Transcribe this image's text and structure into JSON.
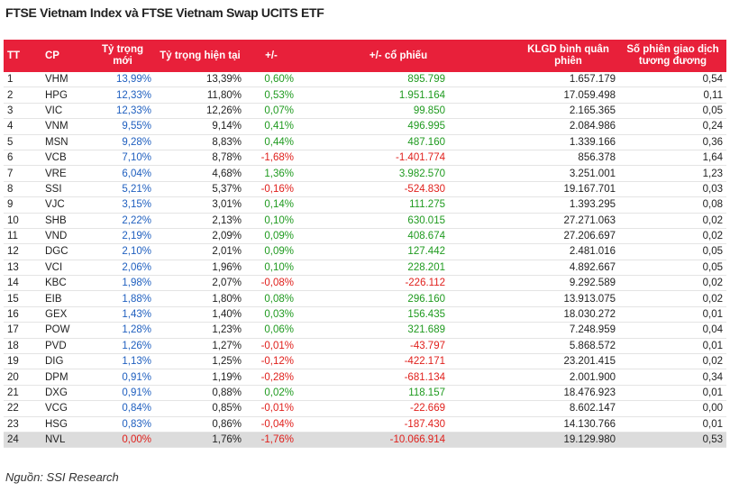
{
  "title": "FTSE Vietnam Index và FTSE Vietnam Swap UCITS ETF",
  "table": {
    "header": [
      "TT",
      "CP",
      "Tỷ trọng mới",
      "Tỷ trọng hiện tại",
      "+/-",
      "+/- cổ phiếu",
      "KLGD bình quân phiên",
      "Số phiên giao dịch tương đương"
    ],
    "rows": [
      [
        "1",
        "VHM",
        "13,99%",
        "13,39%",
        "0,60%",
        "895.799",
        "1.657.179",
        "0,54"
      ],
      [
        "2",
        "HPG",
        "12,33%",
        "11,80%",
        "0,53%",
        "1.951.164",
        "17.059.498",
        "0,11"
      ],
      [
        "3",
        "VIC",
        "12,33%",
        "12,26%",
        "0,07%",
        "99.850",
        "2.165.365",
        "0,05"
      ],
      [
        "4",
        "VNM",
        "9,55%",
        "9,14%",
        "0,41%",
        "496.995",
        "2.084.986",
        "0,24"
      ],
      [
        "5",
        "MSN",
        "9,28%",
        "8,83%",
        "0,44%",
        "487.160",
        "1.339.166",
        "0,36"
      ],
      [
        "6",
        "VCB",
        "7,10%",
        "8,78%",
        "-1,68%",
        "-1.401.774",
        "856.378",
        "1,64"
      ],
      [
        "7",
        "VRE",
        "6,04%",
        "4,68%",
        "1,36%",
        "3.982.570",
        "3.251.001",
        "1,23"
      ],
      [
        "8",
        "SSI",
        "5,21%",
        "5,37%",
        "-0,16%",
        "-524.830",
        "19.167.701",
        "0,03"
      ],
      [
        "9",
        "VJC",
        "3,15%",
        "3,01%",
        "0,14%",
        "111.275",
        "1.393.295",
        "0,08"
      ],
      [
        "10",
        "SHB",
        "2,22%",
        "2,13%",
        "0,10%",
        "630.015",
        "27.271.063",
        "0,02"
      ],
      [
        "11",
        "VND",
        "2,19%",
        "2,09%",
        "0,09%",
        "408.674",
        "27.206.697",
        "0,02"
      ],
      [
        "12",
        "DGC",
        "2,10%",
        "2,01%",
        "0,09%",
        "127.442",
        "2.481.016",
        "0,05"
      ],
      [
        "13",
        "VCI",
        "2,06%",
        "1,96%",
        "0,10%",
        "228.201",
        "4.892.667",
        "0,05"
      ],
      [
        "14",
        "KBC",
        "1,98%",
        "2,07%",
        "-0,08%",
        "-226.112",
        "9.292.589",
        "0,02"
      ],
      [
        "15",
        "EIB",
        "1,88%",
        "1,80%",
        "0,08%",
        "296.160",
        "13.913.075",
        "0,02"
      ],
      [
        "16",
        "GEX",
        "1,43%",
        "1,40%",
        "0,03%",
        "156.435",
        "18.030.272",
        "0,01"
      ],
      [
        "17",
        "POW",
        "1,28%",
        "1,23%",
        "0,06%",
        "321.689",
        "7.248.959",
        "0,04"
      ],
      [
        "18",
        "PVD",
        "1,26%",
        "1,27%",
        "-0,01%",
        "-43.797",
        "5.868.572",
        "0,01"
      ],
      [
        "19",
        "DIG",
        "1,13%",
        "1,25%",
        "-0,12%",
        "-422.171",
        "23.201.415",
        "0,02"
      ],
      [
        "20",
        "DPM",
        "0,91%",
        "1,19%",
        "-0,28%",
        "-681.134",
        "2.001.900",
        "0,34"
      ],
      [
        "21",
        "DXG",
        "0,91%",
        "0,88%",
        "0,02%",
        "118.157",
        "18.476.923",
        "0,01"
      ],
      [
        "22",
        "VCG",
        "0,84%",
        "0,85%",
        "-0,01%",
        "-22.669",
        "8.602.147",
        "0,00"
      ],
      [
        "23",
        "HSG",
        "0,83%",
        "0,86%",
        "-0,04%",
        "-187.430",
        "14.130.766",
        "0,01"
      ],
      [
        "24",
        "NVL",
        "0,00%",
        "1,76%",
        "-1,76%",
        "-10.066.914",
        "19.129.980",
        "0,53"
      ]
    ]
  },
  "source": "Nguồn: SSI Research"
}
